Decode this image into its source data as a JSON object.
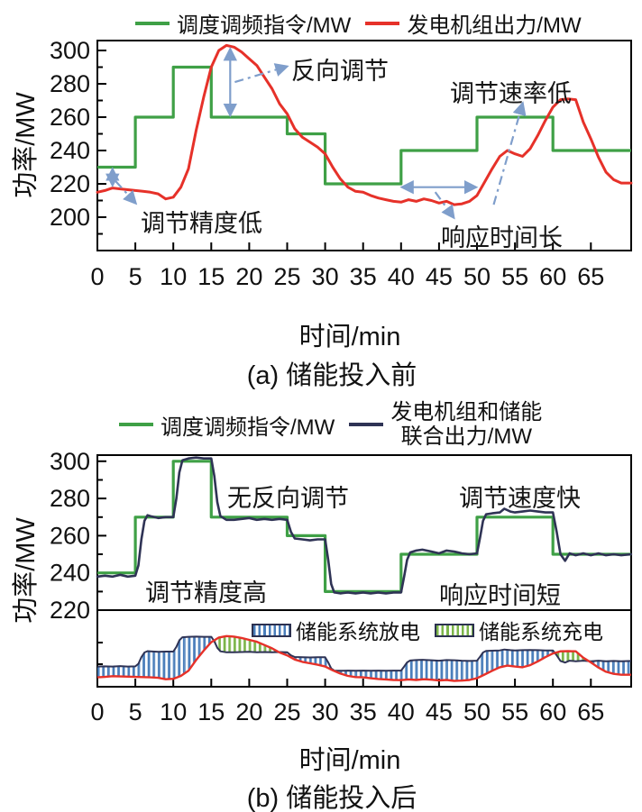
{
  "colors": {
    "command_green": "#3fa046",
    "generator_red": "#e63129",
    "combined_navy": "#2f3355",
    "annotation_blue": "#7f9ecb",
    "discharge_hatch": "#4a7ebb",
    "charge_hatch": "#7cb54a",
    "axis_black": "#000000",
    "text": "#111111"
  },
  "chart_data": [
    {
      "id": "a",
      "type": "line",
      "caption": "(a) 储能投入前",
      "xlabel": "时间/min",
      "ylabel": "功率/MW",
      "xlim": [
        0,
        70.3
      ],
      "ylim": [
        180,
        307
      ],
      "xticks": [
        0,
        5,
        10,
        15,
        20,
        25,
        30,
        35,
        40,
        45,
        50,
        55,
        60,
        65
      ],
      "yticks": [
        200,
        220,
        240,
        260,
        280,
        300
      ],
      "yminor": [
        190,
        210,
        230,
        250,
        270,
        290
      ],
      "grid": false,
      "legend_position": "top-center",
      "legend": [
        {
          "label": "调度调频指令/MW",
          "color_key": "command_green"
        },
        {
          "label": "发电机组出力/MW",
          "color_key": "generator_red"
        }
      ],
      "series": {
        "command": {
          "name": "调度调频指令/MW",
          "mode": "step",
          "points": [
            [
              0,
              230
            ],
            [
              5,
              260
            ],
            [
              10,
              290
            ],
            [
              15,
              260
            ],
            [
              25,
              250
            ],
            [
              30,
              220
            ],
            [
              40,
              240
            ],
            [
              50,
              260
            ],
            [
              60,
              240
            ]
          ],
          "x_end": 70.3
        },
        "generator": {
          "name": "发电机组出力/MW",
          "mode": "line",
          "points": [
            [
              0,
              215
            ],
            [
              1,
              216
            ],
            [
              2,
              217.5
            ],
            [
              3,
              217
            ],
            [
              4,
              216.5
            ],
            [
              5,
              216
            ],
            [
              6,
              215.5
            ],
            [
              7,
              215
            ],
            [
              8,
              214
            ],
            [
              9,
              211
            ],
            [
              10,
              212
            ],
            [
              11,
              218
            ],
            [
              12,
              229
            ],
            [
              13,
              252
            ],
            [
              14,
              272
            ],
            [
              15,
              290
            ],
            [
              16,
              300
            ],
            [
              17,
              303
            ],
            [
              18,
              302
            ],
            [
              19,
              299
            ],
            [
              20,
              295
            ],
            [
              21,
              291
            ],
            [
              22,
              284
            ],
            [
              23,
              277
            ],
            [
              24,
              268
            ],
            [
              25,
              262
            ],
            [
              26,
              253
            ],
            [
              27,
              248
            ],
            [
              28,
              245
            ],
            [
              29,
              242
            ],
            [
              30,
              238
            ],
            [
              31,
              230
            ],
            [
              32,
              223
            ],
            [
              33,
              218
            ],
            [
              34,
              215.5
            ],
            [
              35,
              215
            ],
            [
              36,
              213
            ],
            [
              37,
              211.5
            ],
            [
              38,
              210.5
            ],
            [
              39,
              209.5
            ],
            [
              40,
              209
            ],
            [
              41,
              210.5
            ],
            [
              42,
              209.5
            ],
            [
              43,
              211
            ],
            [
              44,
              210
            ],
            [
              45,
              208.5
            ],
            [
              46,
              209.5
            ],
            [
              47,
              207.5
            ],
            [
              48,
              208
            ],
            [
              49,
              209.5
            ],
            [
              50,
              213
            ],
            [
              51,
              221
            ],
            [
              52,
              229
            ],
            [
              53,
              236.5
            ],
            [
              54,
              240
            ],
            [
              55,
              238
            ],
            [
              56,
              236.5
            ],
            [
              57,
              241
            ],
            [
              58,
              249
            ],
            [
              59,
              258
            ],
            [
              60,
              266
            ],
            [
              61,
              270.5
            ],
            [
              62,
              271
            ],
            [
              63,
              270.5
            ],
            [
              64,
              257
            ],
            [
              65,
              247
            ],
            [
              66,
              236
            ],
            [
              67,
              227
            ],
            [
              68,
              222.5
            ],
            [
              69,
              220.5
            ],
            [
              70.3,
              220.5
            ]
          ]
        }
      },
      "annotations": [
        {
          "text": "调节精度低"
        },
        {
          "text": "反向调节"
        },
        {
          "text": "调节速率低"
        },
        {
          "text": "响应时间长"
        }
      ],
      "arrows": [
        {
          "kind": "double",
          "x1": 2.0,
          "v1": 228.5,
          "x2": 2.0,
          "v2": 219.5
        },
        {
          "kind": "double",
          "x1": 17.5,
          "v1": 300.5,
          "x2": 17.5,
          "v2": 261.5
        },
        {
          "kind": "double",
          "x1": 40.2,
          "v1": 218,
          "x2": 49.8,
          "v2": 218
        },
        {
          "kind": "leader",
          "x1": 2.4,
          "v1": 221.6,
          "x2": 5.0,
          "v2": 208.6
        },
        {
          "kind": "leader",
          "x1": 18.1,
          "v1": 281,
          "x2": 24.9,
          "v2": 290.3
        },
        {
          "kind": "leader",
          "x1": 52.2,
          "v1": 207.5,
          "x2": 56.0,
          "v2": 268
        },
        {
          "kind": "leader",
          "x1": 44.5,
          "v1": 215.1,
          "x2": 46.9,
          "v2": 200
        }
      ]
    },
    {
      "id": "b",
      "type": "line",
      "caption": "(b) 储能投入后",
      "xlabel": "时间/min",
      "ylabel": "功率/MW",
      "xlim": [
        0,
        70.3
      ],
      "ylim": [
        220,
        303
      ],
      "xticks": [
        0,
        5,
        10,
        15,
        20,
        25,
        30,
        35,
        40,
        45,
        50,
        55,
        60,
        65
      ],
      "yticks": [
        220,
        240,
        260,
        280,
        300
      ],
      "yminor": [
        230,
        250,
        270,
        290
      ],
      "grid": false,
      "legend_position": "top-center",
      "legend": [
        {
          "label": "调度调频指令/MW",
          "color_key": "command_green"
        },
        {
          "label": "发电机组和储能",
          "label2": "联合出力/MW",
          "color_key": "combined_navy"
        }
      ],
      "series": {
        "command": {
          "name": "调度调频指令/MW",
          "mode": "step",
          "points": [
            [
              0,
              240
            ],
            [
              5,
              270
            ],
            [
              10,
              300
            ],
            [
              15,
              270
            ],
            [
              25,
              260
            ],
            [
              30,
              230
            ],
            [
              40,
              250
            ],
            [
              50,
              270
            ],
            [
              60,
              250
            ]
          ],
          "x_end": 70.3
        },
        "combined": {
          "name": "发电机组和储能联合出力/MW",
          "mode": "line",
          "points": [
            [
              0,
              238
            ],
            [
              1,
              238.5
            ],
            [
              2,
              238
            ],
            [
              3,
              239
            ],
            [
              4,
              238
            ],
            [
              5,
              238.5
            ],
            [
              5.4,
              244
            ],
            [
              5.8,
              258
            ],
            [
              6.2,
              268
            ],
            [
              6.6,
              271
            ],
            [
              7,
              270.5
            ],
            [
              8,
              269.5
            ],
            [
              9,
              270
            ],
            [
              10,
              270
            ],
            [
              10.4,
              280
            ],
            [
              10.8,
              294
            ],
            [
              11.2,
              300.5
            ],
            [
              12,
              301.5
            ],
            [
              13,
              302
            ],
            [
              14,
              301.5
            ],
            [
              15,
              301.5
            ],
            [
              15.4,
              292
            ],
            [
              15.8,
              278
            ],
            [
              16.2,
              270.5
            ],
            [
              17,
              268.5
            ],
            [
              18,
              268.5
            ],
            [
              19,
              269
            ],
            [
              20,
              269.5
            ],
            [
              21,
              268.5
            ],
            [
              22,
              269
            ],
            [
              23,
              268.5
            ],
            [
              24,
              269
            ],
            [
              25,
              268.5
            ],
            [
              25.5,
              262
            ],
            [
              26,
              258.5
            ],
            [
              27,
              258
            ],
            [
              28,
              257.5
            ],
            [
              29,
              258
            ],
            [
              30,
              258
            ],
            [
              30.4,
              247
            ],
            [
              30.8,
              234
            ],
            [
              31.2,
              229.5
            ],
            [
              32,
              229
            ],
            [
              33,
              229.5
            ],
            [
              34,
              229
            ],
            [
              35,
              229.5
            ],
            [
              36,
              229
            ],
            [
              37,
              229.5
            ],
            [
              38,
              229
            ],
            [
              39,
              229.5
            ],
            [
              40,
              229.5
            ],
            [
              40.4,
              238
            ],
            [
              40.8,
              247
            ],
            [
              41.2,
              251
            ],
            [
              42,
              252
            ],
            [
              42.8,
              252.5
            ],
            [
              44,
              251.5
            ],
            [
              45,
              250.5
            ],
            [
              46,
              252
            ],
            [
              47,
              251.5
            ],
            [
              48,
              250.5
            ],
            [
              49,
              250
            ],
            [
              50,
              250.5
            ],
            [
              50.4,
              259
            ],
            [
              50.8,
              268
            ],
            [
              51.2,
              271.5
            ],
            [
              52,
              272
            ],
            [
              53,
              272.5
            ],
            [
              53.6,
              274.5
            ],
            [
              54.4,
              273
            ],
            [
              55,
              272.5
            ],
            [
              56,
              273
            ],
            [
              57,
              273.5
            ],
            [
              58,
              273
            ],
            [
              59,
              272.5
            ],
            [
              60,
              272.5
            ],
            [
              60.5,
              262
            ],
            [
              61,
              250
            ],
            [
              61.6,
              246.5
            ],
            [
              62.2,
              250.5
            ],
            [
              63,
              249.5
            ],
            [
              64,
              250.5
            ],
            [
              65,
              249.5
            ],
            [
              66,
              250.5
            ],
            [
              67,
              249.5
            ],
            [
              68,
              250
            ],
            [
              69,
              249.5
            ],
            [
              70.3,
              250
            ]
          ]
        }
      },
      "annotations": [
        {
          "text": "无反向调节"
        },
        {
          "text": "调节速度快"
        },
        {
          "text": "调节精度高"
        },
        {
          "text": "响应时间短"
        }
      ],
      "storage_panel": {
        "description": "下方子图：红线为发电机组出力，深色线为联合出力，两线间阴影为储能充放电",
        "legend": [
          {
            "label": "储能系统放电",
            "hatch_color_key": "discharge_hatch"
          },
          {
            "label": "储能系统充电",
            "hatch_color_key": "charge_hatch"
          }
        ],
        "generator_series_ref": "chart_data.0.series.generator",
        "combined_series_ref": "chart_data.1.series.combined"
      }
    }
  ]
}
